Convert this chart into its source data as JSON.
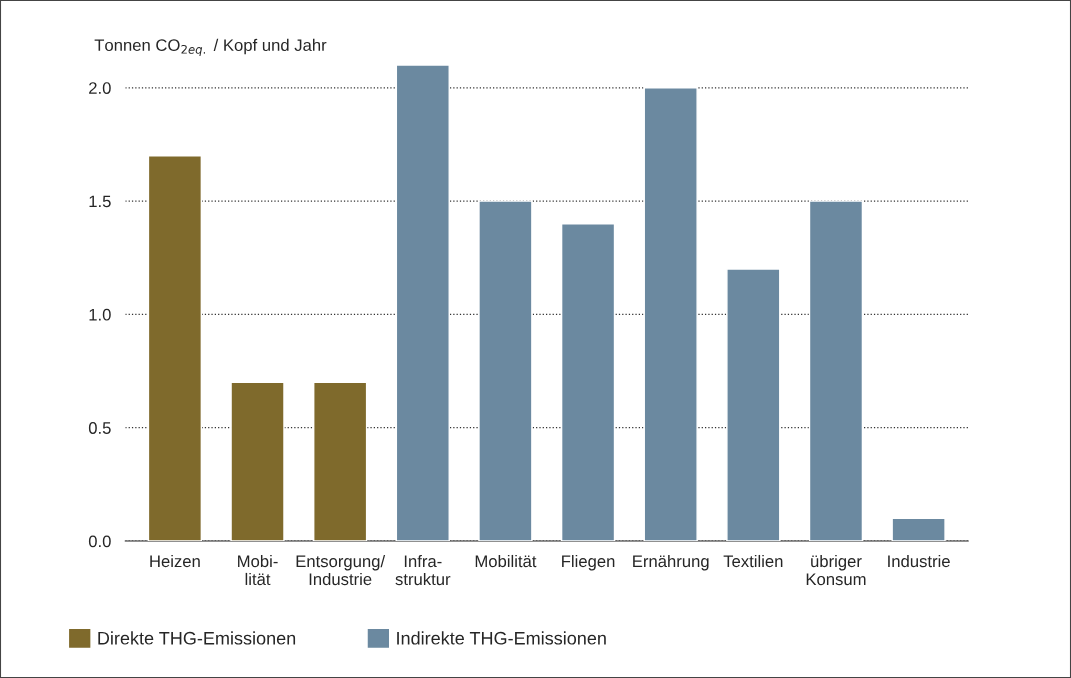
{
  "chart_data": {
    "type": "bar",
    "ylabel": "Tonnen CO$_{2eq.}$ / Kopf und Jahr",
    "categories": [
      "Heizen",
      "Mobi-\nlität",
      "Entsorgung/\nIndustrie",
      "Infra-\nstruktur",
      "Mobilität",
      "Fliegen",
      "Ernährung",
      "Textilien",
      "übriger\nKonsum",
      "Industrie"
    ],
    "series": [
      {
        "name": "Direkte THG-Emissionen",
        "color": "#7f6a2c",
        "values": [
          1.7,
          0.7,
          0.7,
          null,
          null,
          null,
          null,
          null,
          null,
          null
        ]
      },
      {
        "name": "Indirekte THG-Emissionen",
        "color": "#6b89a0",
        "values": [
          null,
          null,
          null,
          2.1,
          1.5,
          1.4,
          2.0,
          1.2,
          1.5,
          0.1
        ]
      }
    ],
    "ylim": [
      0,
      2.1
    ],
    "yticks": [
      {
        "value": 0,
        "label": "0.0"
      },
      0.5,
      {
        "value": 1,
        "label": "1.0"
      },
      1.5,
      {
        "value": 2,
        "label": "2.0"
      }
    ],
    "grid": "y",
    "legend": "bottom"
  }
}
